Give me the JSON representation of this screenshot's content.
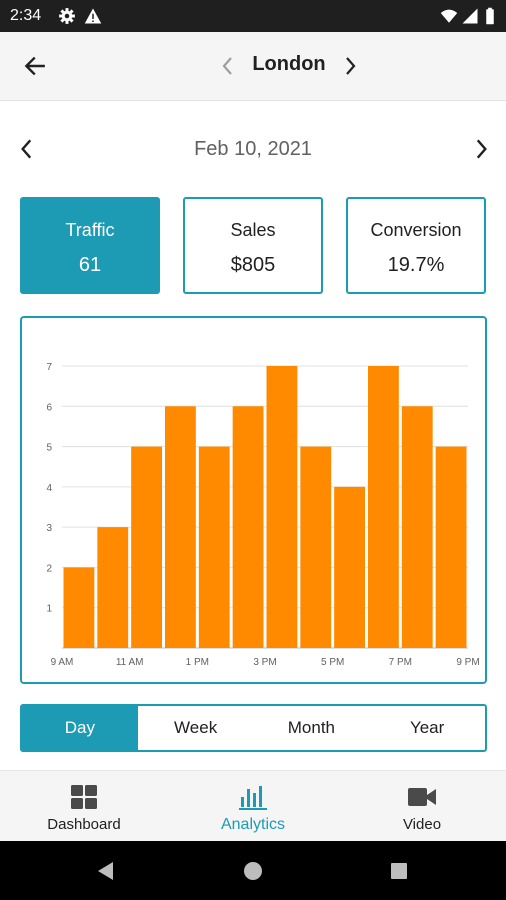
{
  "status_bar": {
    "time": "2:34",
    "icons": [
      "settings-icon",
      "warning-icon",
      "wifi-icon",
      "signal-icon",
      "battery-icon"
    ]
  },
  "app_bar": {
    "title": "London",
    "icons": [
      "arrow-back-icon",
      "chevron-left-icon",
      "chevron-right-icon"
    ]
  },
  "date_nav": {
    "date": "Feb 10, 2021"
  },
  "metrics": [
    {
      "label": "Traffic",
      "value": "61",
      "selected": true
    },
    {
      "label": "Sales",
      "value": "$805",
      "selected": false
    },
    {
      "label": "Conversion",
      "value": "19.7%",
      "selected": false
    }
  ],
  "chart_data": {
    "type": "bar",
    "x": [
      9,
      10,
      11,
      12,
      13,
      14,
      15,
      16,
      17,
      18,
      19,
      20
    ],
    "values": [
      2,
      3,
      5,
      6,
      5,
      6,
      7,
      5,
      4,
      7,
      6,
      5
    ],
    "xlim": [
      9,
      21
    ],
    "ylim": [
      0,
      7
    ],
    "x_ticks": [
      "9 AM",
      "11 AM",
      "1 PM",
      "3 PM",
      "5 PM",
      "7 PM",
      "9 PM"
    ],
    "y_ticks": [
      "1",
      "2",
      "3",
      "4",
      "5",
      "6",
      "7"
    ],
    "bar_color": "#ff8a00",
    "grid": true,
    "legend": "none"
  },
  "period_tabs": [
    {
      "label": "Day",
      "selected": true
    },
    {
      "label": "Week",
      "selected": false
    },
    {
      "label": "Month",
      "selected": false
    },
    {
      "label": "Year",
      "selected": false
    }
  ],
  "bottom_nav": [
    {
      "label": "Dashboard",
      "icon": "dashboard-icon",
      "selected": false
    },
    {
      "label": "Analytics",
      "icon": "analytics-icon",
      "selected": true
    },
    {
      "label": "Video",
      "icon": "video-icon",
      "selected": false
    }
  ],
  "system_nav": [
    "back-triangle-icon",
    "home-circle-icon",
    "recents-square-icon"
  ],
  "colors": {
    "accent": "#1e9bb4",
    "bar": "#ff8a00",
    "status_bar": "#1f1f1f",
    "app_bar": "#f5f5f5"
  }
}
